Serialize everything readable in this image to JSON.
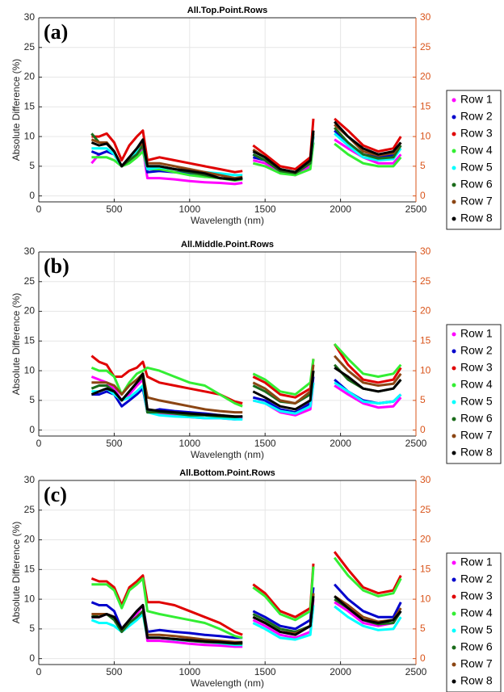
{
  "chart_data": [
    {
      "type": "line",
      "title": "All.Top.Point.Rows",
      "panel_label": "(a)",
      "y_label": "Absolute Difference (%)",
      "x_label": "Wavelength (nm)",
      "xlim": [
        0,
        2500
      ],
      "xticks": [
        0,
        500,
        1000,
        1500,
        2000,
        2500
      ],
      "ylim": [
        -1,
        30
      ],
      "yticks": [
        0,
        5,
        10,
        15,
        20,
        25,
        30
      ],
      "y2lim": [
        -1,
        30
      ],
      "y2ticks": [
        0,
        5,
        10,
        15,
        20,
        25,
        30
      ],
      "grid": true,
      "legend": "right",
      "x": [
        350,
        400,
        450,
        500,
        550,
        600,
        650,
        690,
        720,
        800,
        900,
        1000,
        1100,
        1200,
        1300,
        1350,
        1390,
        1420,
        1500,
        1600,
        1700,
        1800,
        1820,
        1900,
        1960,
        2050,
        2150,
        2250,
        2350,
        2400
      ],
      "series": [
        {
          "name": "Row 1",
          "color": "#ff00ff",
          "values": [
            5.5,
            7,
            7.5,
            7,
            5,
            6,
            7,
            8,
            3,
            3,
            2.8,
            2.5,
            2.3,
            2.2,
            2,
            2.2,
            null,
            6,
            5.5,
            4,
            3.5,
            5,
            9,
            null,
            9.5,
            8,
            6.5,
            5.5,
            5.5,
            7
          ]
        },
        {
          "name": "Row 2",
          "color": "#0000cc",
          "values": [
            7.5,
            7,
            7.5,
            7,
            5,
            6.5,
            7.5,
            8.5,
            4,
            4.2,
            4,
            3.8,
            3.5,
            3,
            2.8,
            3,
            null,
            6.5,
            6,
            4.2,
            3.8,
            5.5,
            10,
            null,
            11,
            9,
            7,
            6.5,
            6.8,
            8.5
          ]
        },
        {
          "name": "Row 3",
          "color": "#e00000",
          "values": [
            10,
            10,
            10.5,
            9,
            6,
            8.5,
            10,
            11,
            6,
            6.5,
            6,
            5.5,
            5,
            4.5,
            4,
            4.2,
            null,
            8.5,
            7,
            5,
            4.5,
            6.5,
            13,
            null,
            13,
            11,
            8.5,
            7.5,
            8,
            10
          ]
        },
        {
          "name": "Row 4",
          "color": "#33ee33",
          "values": [
            6.5,
            6.5,
            6.5,
            6,
            5,
            5.5,
            6.5,
            7.5,
            4.5,
            4.5,
            4,
            3.5,
            3.2,
            3,
            2.6,
            2.8,
            null,
            5.5,
            5,
            3.8,
            3.5,
            4.5,
            9,
            null,
            8.8,
            7,
            5.5,
            5,
            5,
            6.5
          ]
        },
        {
          "name": "Row 5",
          "color": "#00ffff",
          "values": [
            8,
            8,
            8,
            7,
            5,
            6.5,
            7.5,
            8.5,
            4.5,
            4.8,
            4.5,
            4.2,
            4,
            3.8,
            3.5,
            3.5,
            null,
            7,
            6,
            4.3,
            4,
            5.5,
            10,
            null,
            10.5,
            8.5,
            6.5,
            6,
            6.2,
            8
          ]
        },
        {
          "name": "Row 6",
          "color": "#1a6b1a",
          "values": [
            10.5,
            9,
            9,
            7.5,
            5,
            6,
            7,
            8.5,
            5,
            5,
            4.5,
            4,
            3.5,
            3,
            2.7,
            2.9,
            null,
            7,
            6,
            4.2,
            3.8,
            5.5,
            10.5,
            null,
            11.5,
            9,
            7,
            6.3,
            6.5,
            8.5
          ]
        },
        {
          "name": "Row 7",
          "color": "#8b4513",
          "values": [
            9.5,
            9,
            9,
            7.5,
            5,
            6.5,
            8,
            9,
            5.5,
            5.5,
            5,
            4.5,
            4,
            3.5,
            3,
            3.2,
            null,
            7.8,
            6.5,
            4.5,
            4,
            6,
            11,
            null,
            12,
            10,
            7.5,
            6.8,
            7.2,
            9
          ]
        },
        {
          "name": "Row 8",
          "color": "#000000",
          "values": [
            9,
            8.5,
            8.8,
            7.5,
            5,
            6.5,
            8,
            9.5,
            5,
            5,
            4.5,
            4.2,
            3.8,
            3,
            2.8,
            3,
            null,
            7.5,
            6.5,
            4.5,
            4,
            6,
            11,
            null,
            12.5,
            10,
            8,
            7,
            7.5,
            9
          ]
        }
      ]
    },
    {
      "type": "line",
      "title": "All.Middle.Point.Rows",
      "panel_label": "(b)",
      "y_label": "Absolute Difference (%)",
      "x_label": "Wavelength (nm)",
      "xlim": [
        0,
        2500
      ],
      "xticks": [
        0,
        500,
        1000,
        1500,
        2000,
        2500
      ],
      "ylim": [
        -1,
        30
      ],
      "yticks": [
        0,
        5,
        10,
        15,
        20,
        25,
        30
      ],
      "y2lim": [
        -1,
        30
      ],
      "y2ticks": [
        0,
        5,
        10,
        15,
        20,
        25,
        30
      ],
      "grid": true,
      "legend": "right",
      "x": [
        350,
        400,
        450,
        500,
        550,
        600,
        650,
        690,
        720,
        800,
        900,
        1000,
        1100,
        1200,
        1300,
        1350,
        1390,
        1420,
        1500,
        1600,
        1700,
        1800,
        1820,
        1900,
        1960,
        2050,
        2150,
        2250,
        2350,
        2400
      ],
      "series": [
        {
          "name": "Row 1",
          "color": "#ff00ff",
          "values": [
            9,
            8.5,
            8,
            7,
            5,
            6,
            7.5,
            8.5,
            3,
            2.8,
            2.5,
            2.2,
            2,
            2,
            1.8,
            2,
            null,
            5,
            4.5,
            3,
            2.5,
            3.5,
            8,
            null,
            7.5,
            6,
            4.5,
            3.8,
            4,
            5.5
          ]
        },
        {
          "name": "Row 2",
          "color": "#0000cc",
          "values": [
            6,
            6,
            6.5,
            6,
            4,
            5,
            6,
            7,
            3,
            3.5,
            3.2,
            3,
            2.8,
            2.5,
            2.2,
            2.3,
            null,
            5.5,
            5,
            3.5,
            3,
            4.5,
            9,
            null,
            8.5,
            6.5,
            5,
            4.5,
            4.8,
            6
          ]
        },
        {
          "name": "Row 3",
          "color": "#e00000",
          "values": [
            12.5,
            11.5,
            11,
            9,
            9,
            10,
            10.5,
            11.5,
            9,
            8,
            7.5,
            7,
            6.5,
            6,
            4.8,
            4.5,
            null,
            9,
            8,
            6,
            5.5,
            7,
            12,
            null,
            14.5,
            11,
            8.5,
            8,
            8.5,
            10.5
          ]
        },
        {
          "name": "Row 4",
          "color": "#33ee33",
          "values": [
            10.5,
            10,
            10,
            9,
            6,
            8,
            9.5,
            10,
            10.5,
            10,
            9,
            8,
            7.5,
            6,
            4.5,
            4,
            null,
            9.5,
            8.5,
            6.5,
            6,
            8,
            12,
            null,
            14.5,
            12,
            9.5,
            9,
            9.5,
            11
          ]
        },
        {
          "name": "Row 5",
          "color": "#00ffff",
          "values": [
            6.5,
            6.5,
            7,
            6,
            5,
            5.5,
            6.5,
            7.5,
            3,
            2.5,
            2.3,
            2.2,
            2,
            2,
            1.8,
            1.8,
            null,
            5,
            4.5,
            3.2,
            2.8,
            4,
            8,
            null,
            8,
            6.5,
            4.8,
            4.5,
            4.8,
            6
          ]
        },
        {
          "name": "Row 6",
          "color": "#1a6b1a",
          "values": [
            7,
            7.5,
            7.5,
            6.5,
            5,
            6.5,
            8,
            9,
            3,
            3,
            2.8,
            2.5,
            2.5,
            2.3,
            2.2,
            2.3,
            null,
            7.5,
            6.5,
            4.8,
            4.5,
            6,
            10,
            null,
            11,
            8.5,
            7,
            6.5,
            7,
            8.5
          ]
        },
        {
          "name": "Row 7",
          "color": "#8b4513",
          "values": [
            8,
            8,
            8,
            7.5,
            6,
            7.5,
            8.5,
            9.5,
            5.5,
            5,
            4.5,
            4,
            3.5,
            3.2,
            3,
            3,
            null,
            8,
            7,
            5,
            4.5,
            6.5,
            11,
            null,
            12.5,
            10,
            8,
            7.5,
            7.8,
            9.5
          ]
        },
        {
          "name": "Row 8",
          "color": "#000000",
          "values": [
            6,
            6.5,
            7,
            6.5,
            5,
            6.5,
            8,
            9.5,
            3.5,
            3.2,
            3,
            2.8,
            2.6,
            2.5,
            2.3,
            2.3,
            null,
            6.5,
            5.5,
            4,
            3.5,
            5,
            10,
            null,
            10.5,
            9,
            7,
            6.5,
            7,
            8.5
          ]
        }
      ]
    },
    {
      "type": "line",
      "title": "All.Bottom.Point.Rows",
      "panel_label": "(c)",
      "y_label": "Absolute Difference (%)",
      "x_label": "Wavelength (nm)",
      "xlim": [
        0,
        2500
      ],
      "xticks": [
        0,
        500,
        1000,
        1500,
        2000,
        2500
      ],
      "ylim": [
        -1,
        30
      ],
      "yticks": [
        0,
        5,
        10,
        15,
        20,
        25,
        30
      ],
      "y2lim": [
        -1,
        30
      ],
      "y2ticks": [
        0,
        5,
        10,
        15,
        20,
        25,
        30
      ],
      "grid": true,
      "legend": "right",
      "x": [
        350,
        400,
        450,
        500,
        550,
        600,
        650,
        690,
        720,
        800,
        900,
        1000,
        1100,
        1200,
        1300,
        1350,
        1390,
        1420,
        1500,
        1600,
        1700,
        1800,
        1820,
        1900,
        1960,
        2050,
        2150,
        2250,
        2350,
        2400
      ],
      "series": [
        {
          "name": "Row 1",
          "color": "#ff00ff",
          "values": [
            7,
            7,
            7.5,
            7,
            4.5,
            6,
            7.5,
            9,
            3,
            3,
            2.8,
            2.5,
            2.3,
            2.2,
            2,
            2,
            null,
            6.5,
            5.5,
            4,
            3.5,
            4.5,
            10,
            null,
            9.5,
            8,
            6,
            5.5,
            6,
            8
          ]
        },
        {
          "name": "Row 2",
          "color": "#0000cc",
          "values": [
            9.5,
            9,
            9,
            8,
            5,
            6.5,
            8,
            9,
            4.5,
            4.8,
            4.5,
            4.3,
            4,
            3.8,
            3.5,
            3.5,
            null,
            8,
            7,
            5.5,
            5,
            6.5,
            12,
            null,
            12.5,
            10,
            8,
            7,
            7,
            9.5
          ]
        },
        {
          "name": "Row 3",
          "color": "#e00000",
          "values": [
            13.5,
            13,
            13,
            12,
            9,
            12,
            13,
            14,
            9.5,
            9.5,
            9,
            8,
            7,
            6,
            4.5,
            4,
            null,
            12.5,
            11,
            8,
            7,
            8.5,
            16,
            null,
            18,
            15,
            12,
            11,
            11.5,
            14
          ]
        },
        {
          "name": "Row 4",
          "color": "#33ee33",
          "values": [
            12.5,
            12.5,
            12.5,
            11.5,
            8.5,
            11.5,
            12.5,
            13.5,
            8,
            7.5,
            7,
            6.5,
            6,
            5,
            3.8,
            3.5,
            null,
            12,
            10.5,
            7.5,
            6.5,
            8,
            15.5,
            null,
            17,
            14,
            11.5,
            10.5,
            11,
            13.5
          ]
        },
        {
          "name": "Row 5",
          "color": "#00ffff",
          "values": [
            6.5,
            6,
            6,
            5.5,
            4.5,
            5.5,
            6.5,
            7.5,
            3.5,
            3.5,
            3.2,
            3,
            2.8,
            2.6,
            2.3,
            2.3,
            null,
            6,
            5,
            3.5,
            3.2,
            4,
            9,
            null,
            8.8,
            7,
            5.5,
            4.8,
            5,
            7
          ]
        },
        {
          "name": "Row 6",
          "color": "#1a6b1a",
          "values": [
            7,
            7.5,
            7.5,
            6.5,
            4.5,
            6,
            7,
            8,
            3.5,
            3.5,
            3.3,
            3,
            2.8,
            2.7,
            2.5,
            2.5,
            null,
            7.5,
            6.5,
            5,
            4.5,
            5.5,
            11,
            null,
            10,
            8.5,
            6.5,
            5.8,
            6,
            8
          ]
        },
        {
          "name": "Row 7",
          "color": "#8b4513",
          "values": [
            7.5,
            7.5,
            7.5,
            7,
            5,
            6.5,
            8,
            9,
            4,
            4,
            3.8,
            3.5,
            3.2,
            3,
            2.8,
            2.8,
            null,
            7,
            6,
            4.5,
            4.2,
            5.5,
            11,
            null,
            10.5,
            9,
            7,
            6.2,
            6.5,
            8.5
          ]
        },
        {
          "name": "Row 8",
          "color": "#000000",
          "values": [
            7,
            7,
            7.5,
            7,
            5,
            6.5,
            8,
            9,
            3.5,
            3.5,
            3.3,
            3.1,
            2.9,
            2.8,
            2.6,
            2.7,
            null,
            7,
            6,
            4.5,
            4,
            5.5,
            10.5,
            null,
            10.5,
            8.5,
            6.5,
            6,
            6.5,
            8
          ]
        }
      ]
    }
  ]
}
